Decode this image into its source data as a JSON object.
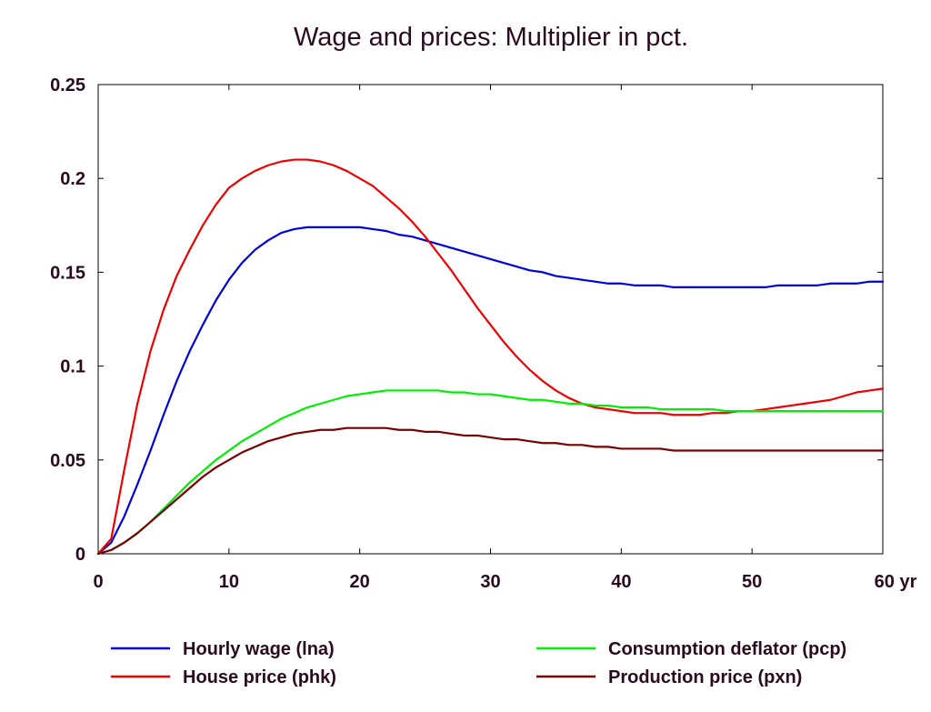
{
  "chart_data": {
    "type": "line",
    "title": "Wage and prices: Multiplier in pct.",
    "xlabel": "",
    "ylabel": "",
    "x_unit_label": "yr",
    "xlim": [
      0,
      60
    ],
    "ylim": [
      0,
      0.25
    ],
    "xticks": [
      0,
      10,
      20,
      30,
      40,
      50,
      60
    ],
    "xtick_labels": [
      "0",
      "10",
      "20",
      "30",
      "40",
      "50",
      "60 yr"
    ],
    "yticks": [
      0,
      0.05,
      0.1,
      0.15,
      0.2,
      0.25
    ],
    "ytick_labels": [
      "0",
      "0.05",
      "0.1",
      "0.15",
      "0.2",
      "0.25"
    ],
    "grid": false,
    "legend_position": "bottom",
    "x": [
      0,
      1,
      2,
      3,
      4,
      5,
      6,
      7,
      8,
      9,
      10,
      11,
      12,
      13,
      14,
      15,
      16,
      17,
      18,
      19,
      20,
      21,
      22,
      23,
      24,
      25,
      26,
      27,
      28,
      29,
      30,
      31,
      32,
      33,
      34,
      35,
      36,
      37,
      38,
      39,
      40,
      41,
      42,
      43,
      44,
      45,
      46,
      47,
      48,
      49,
      50,
      51,
      52,
      53,
      54,
      55,
      56,
      57,
      58,
      59,
      60
    ],
    "series": [
      {
        "name": "Hourly wage (lna)",
        "color": "#0000dd",
        "values": [
          0,
          0.006,
          0.02,
          0.037,
          0.055,
          0.074,
          0.092,
          0.108,
          0.122,
          0.135,
          0.146,
          0.155,
          0.162,
          0.167,
          0.171,
          0.173,
          0.174,
          0.174,
          0.174,
          0.174,
          0.174,
          0.173,
          0.172,
          0.17,
          0.169,
          0.167,
          0.165,
          0.163,
          0.161,
          0.159,
          0.157,
          0.155,
          0.153,
          0.151,
          0.15,
          0.148,
          0.147,
          0.146,
          0.145,
          0.144,
          0.144,
          0.143,
          0.143,
          0.143,
          0.142,
          0.142,
          0.142,
          0.142,
          0.142,
          0.142,
          0.142,
          0.142,
          0.143,
          0.143,
          0.143,
          0.143,
          0.144,
          0.144,
          0.144,
          0.145,
          0.145
        ]
      },
      {
        "name": "House price (phk)",
        "color": "#ee0000",
        "values": [
          0,
          0.008,
          0.045,
          0.08,
          0.108,
          0.13,
          0.148,
          0.162,
          0.175,
          0.186,
          0.195,
          0.2,
          0.204,
          0.207,
          0.209,
          0.21,
          0.21,
          0.209,
          0.207,
          0.204,
          0.2,
          0.196,
          0.19,
          0.184,
          0.177,
          0.169,
          0.16,
          0.151,
          0.141,
          0.131,
          0.122,
          0.113,
          0.105,
          0.098,
          0.092,
          0.087,
          0.083,
          0.08,
          0.078,
          0.077,
          0.076,
          0.075,
          0.075,
          0.075,
          0.074,
          0.074,
          0.074,
          0.075,
          0.075,
          0.076,
          0.076,
          0.077,
          0.078,
          0.079,
          0.08,
          0.081,
          0.082,
          0.084,
          0.086,
          0.087,
          0.088
        ]
      },
      {
        "name": "Consumption deflator (pcp)",
        "color": "#00ee00",
        "values": [
          0,
          0.002,
          0.006,
          0.011,
          0.017,
          0.024,
          0.031,
          0.038,
          0.044,
          0.05,
          0.055,
          0.06,
          0.064,
          0.068,
          0.072,
          0.075,
          0.078,
          0.08,
          0.082,
          0.084,
          0.085,
          0.086,
          0.087,
          0.087,
          0.087,
          0.087,
          0.087,
          0.086,
          0.086,
          0.085,
          0.085,
          0.084,
          0.083,
          0.082,
          0.082,
          0.081,
          0.08,
          0.08,
          0.079,
          0.079,
          0.078,
          0.078,
          0.078,
          0.077,
          0.077,
          0.077,
          0.077,
          0.077,
          0.076,
          0.076,
          0.076,
          0.076,
          0.076,
          0.076,
          0.076,
          0.076,
          0.076,
          0.076,
          0.076,
          0.076,
          0.076
        ]
      },
      {
        "name": "Production price (pxn)",
        "color": "#770000",
        "values": [
          0,
          0.002,
          0.006,
          0.011,
          0.017,
          0.023,
          0.029,
          0.035,
          0.041,
          0.046,
          0.05,
          0.054,
          0.057,
          0.06,
          0.062,
          0.064,
          0.065,
          0.066,
          0.066,
          0.067,
          0.067,
          0.067,
          0.067,
          0.066,
          0.066,
          0.065,
          0.065,
          0.064,
          0.063,
          0.063,
          0.062,
          0.061,
          0.061,
          0.06,
          0.059,
          0.059,
          0.058,
          0.058,
          0.057,
          0.057,
          0.056,
          0.056,
          0.056,
          0.056,
          0.055,
          0.055,
          0.055,
          0.055,
          0.055,
          0.055,
          0.055,
          0.055,
          0.055,
          0.055,
          0.055,
          0.055,
          0.055,
          0.055,
          0.055,
          0.055,
          0.055
        ]
      }
    ]
  }
}
